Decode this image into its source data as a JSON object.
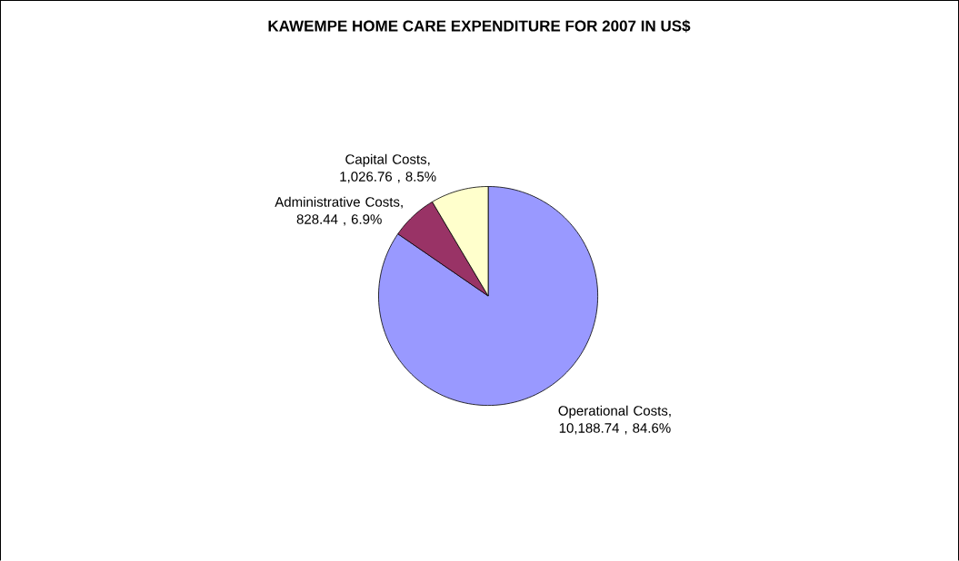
{
  "chart_data": {
    "type": "pie",
    "title": "KAWEMPE HOME CARE EXPENDITURE FOR 2007 IN US$",
    "categories": [
      "Operational Costs",
      "Administrative Costs",
      "Capital Costs"
    ],
    "values": [
      10188.74,
      828.44,
      1026.76
    ],
    "value_labels": [
      ", 10,188.74 , 84.6%",
      ", 828.44 , 6.9%",
      ", 1,026.76 , 8.5%"
    ],
    "colors": [
      "#9999ff",
      "#993366",
      "#ffffcc"
    ]
  }
}
